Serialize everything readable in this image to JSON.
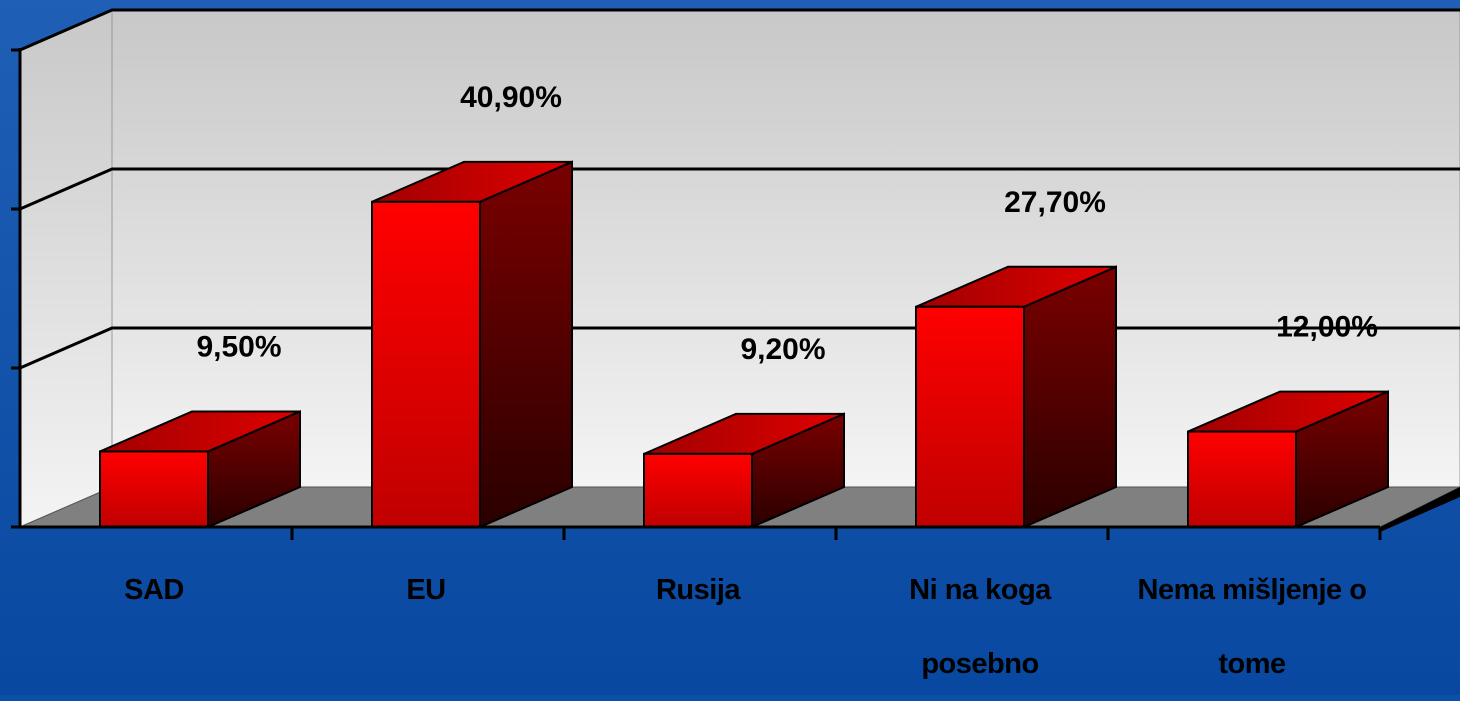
{
  "chart_data": {
    "type": "bar3d",
    "categories": [
      "SAD",
      "EU",
      "Rusija",
      "Ni na koga posebno",
      "Nema mišljenje o tome"
    ],
    "values": [
      9.5,
      40.9,
      9.2,
      27.7,
      12.0
    ],
    "value_labels": [
      "9,50%",
      "40,90%",
      "9,20%",
      "27,70%",
      "12,00%"
    ],
    "color": "#ff0000",
    "ylim": [
      0,
      60
    ],
    "yticks": [
      0,
      20,
      40,
      60
    ],
    "grid": true
  }
}
